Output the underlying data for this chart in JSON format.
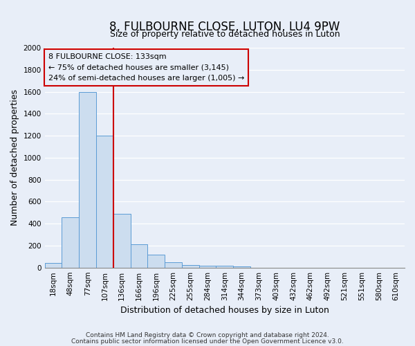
{
  "title": "8, FULBOURNE CLOSE, LUTON, LU4 9PW",
  "subtitle": "Size of property relative to detached houses in Luton",
  "xlabel": "Distribution of detached houses by size in Luton",
  "ylabel": "Number of detached properties",
  "bin_labels": [
    "18sqm",
    "48sqm",
    "77sqm",
    "107sqm",
    "136sqm",
    "166sqm",
    "196sqm",
    "225sqm",
    "255sqm",
    "284sqm",
    "314sqm",
    "344sqm",
    "373sqm",
    "403sqm",
    "432sqm",
    "462sqm",
    "492sqm",
    "521sqm",
    "551sqm",
    "580sqm",
    "610sqm"
  ],
  "bar_values": [
    40,
    460,
    1600,
    1200,
    490,
    210,
    120,
    50,
    25,
    20,
    15,
    10,
    0,
    0,
    0,
    0,
    0,
    0,
    0,
    0,
    0
  ],
  "bar_color": "#ccddef",
  "bar_edge_color": "#5b9bd5",
  "vline_x": 3.5,
  "vline_color": "#cc0000",
  "annotation_text_line1": "8 FULBOURNE CLOSE: 133sqm",
  "annotation_text_line2": "← 75% of detached houses are smaller (3,145)",
  "annotation_text_line3": "24% of semi-detached houses are larger (1,005) →",
  "annotation_box_color": "#cc0000",
  "ylim": [
    0,
    2000
  ],
  "yticks": [
    0,
    200,
    400,
    600,
    800,
    1000,
    1200,
    1400,
    1600,
    1800,
    2000
  ],
  "footer_line1": "Contains HM Land Registry data © Crown copyright and database right 2024.",
  "footer_line2": "Contains public sector information licensed under the Open Government Licence v3.0.",
  "background_color": "#e8eef8",
  "grid_color": "#d0d8e8",
  "title_fontsize": 12,
  "subtitle_fontsize": 9,
  "axis_label_fontsize": 9,
  "tick_fontsize": 7.5,
  "annotation_fontsize": 8,
  "footer_fontsize": 6.5
}
